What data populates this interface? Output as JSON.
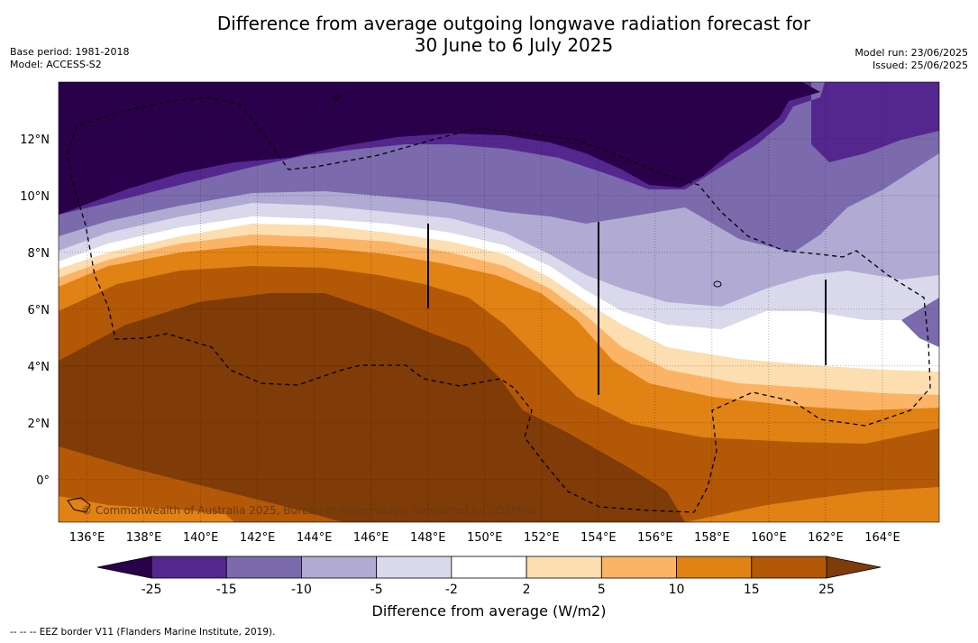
{
  "title": {
    "line1": "Difference from average outgoing longwave radiation forecast for",
    "line2": "30 June to 6 July 2025"
  },
  "meta_left": {
    "base_period": "Base period: 1981-2018",
    "model": "Model: ACCESS-S2"
  },
  "meta_right": {
    "model_run": "Model run: 23/06/2025",
    "issued": "Issued: 25/06/2025"
  },
  "map": {
    "lon_range": [
      135,
      166
    ],
    "lat_range": [
      -1.5,
      14
    ],
    "lon_ticks": [
      "136°E",
      "138°E",
      "140°E",
      "142°E",
      "144°E",
      "146°E",
      "148°E",
      "150°E",
      "152°E",
      "154°E",
      "156°E",
      "158°E",
      "160°E",
      "162°E",
      "164°E"
    ],
    "lat_ticks": [
      "0°",
      "2°N",
      "4°N",
      "6°N",
      "8°N",
      "10°N",
      "12°N"
    ],
    "copyright": "© Commonwealth of Australia 2025, Bureau of Meteorology, supported by COSPPac"
  },
  "colorbar": {
    "labels": [
      "-25",
      "-15",
      "-10",
      "-5",
      "-2",
      "2",
      "5",
      "10",
      "15",
      "25"
    ],
    "colors": [
      "#2a004a",
      "#54278f",
      "#7b6aac",
      "#b1aad3",
      "#d9d9eb",
      "#ffffff",
      "#fddeb0",
      "#fbb466",
      "#e08214",
      "#b35806",
      "#7f3b08"
    ],
    "title": "Difference from average (W/m2)"
  },
  "footer": "--  --  -- EEZ border V11 (Flanders Marine Institute, 2019)."
}
